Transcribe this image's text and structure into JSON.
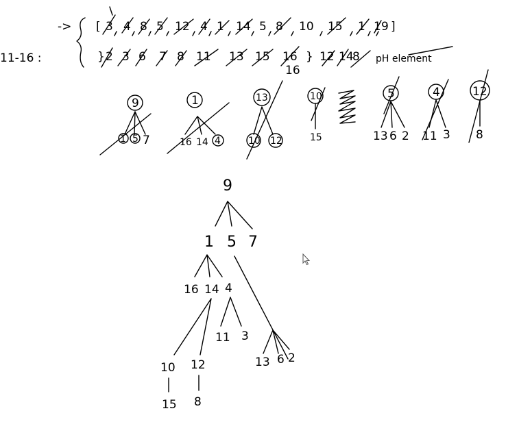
{
  "notes": {
    "arrow_line": {
      "arrow": "->",
      "open_bracket": "[",
      "items": [
        "3",
        "4",
        "8",
        "5",
        "12",
        "4",
        "1",
        "14",
        "5",
        "8",
        "10",
        "15",
        "1",
        "1",
        "9"
      ],
      "close_bracket": "]"
    },
    "range_line": {
      "label": "11-16 :",
      "open_brace": "}",
      "items": [
        "2",
        "3",
        "6",
        "7",
        "8",
        "11",
        "13",
        "15",
        "16"
      ],
      "close_brace": "}",
      "tail_items": [
        "12",
        "14",
        "8"
      ],
      "tail_text": "pH element"
    },
    "small_trees": [
      {
        "root": "9",
        "children": [
          "1",
          "5",
          "7"
        ]
      },
      {
        "root": "1",
        "children": [
          "16",
          "14",
          "4"
        ]
      },
      {
        "root": "13",
        "children": [
          "10",
          "12"
        ]
      },
      {
        "root": "10",
        "children": [
          "15"
        ]
      },
      {
        "root": "5",
        "children": [
          "13",
          "6",
          "2"
        ]
      },
      {
        "root": "4",
        "children": [
          "11",
          "3"
        ]
      },
      {
        "root": "12",
        "children": [
          "8"
        ]
      }
    ],
    "big_tree": {
      "root": "9",
      "level1": [
        "1",
        "5",
        "7"
      ],
      "level2": [
        "16",
        "14",
        "4"
      ],
      "level3_a": [
        "11",
        "3"
      ],
      "level3_b": [
        "13",
        "6",
        "2"
      ],
      "level4": [
        "10",
        "12"
      ],
      "level5": [
        "15",
        "8"
      ]
    }
  },
  "icons": {
    "cursor": "mouse-pointer-icon"
  },
  "colors": {
    "ink": "#000000",
    "background": "#ffffff"
  }
}
